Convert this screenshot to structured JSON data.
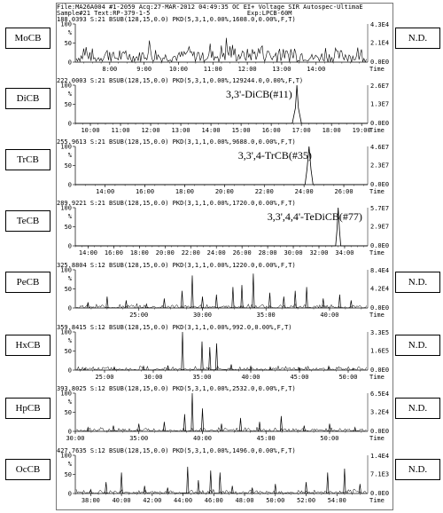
{
  "header": {
    "line1": "File:MA26A004 #1-2059 Acq:27-MAR-2012 04:49:35 OC EI+ Voltage SIR Autospec-UltimaE",
    "line2": "Sample#21 Text:RP-379-1-5                          Exp:LPCB-60M"
  },
  "chart_data": [
    {
      "type": "line",
      "label": "MoCB",
      "right_label": "N.D.",
      "info": "188.0393 S:21 BSUB(128,15,0.0) PKD(5,3,1,0.00%,1608.0,0.00%,F,T)",
      "xlim": [
        7,
        15.5
      ],
      "xticks": [
        "8:00",
        "9:00",
        "10:00",
        "11:00",
        "12:00",
        "13:00",
        "14:00"
      ],
      "xtick_values": [
        8,
        9,
        10,
        11,
        12,
        13,
        14
      ],
      "yticks": [
        "0",
        "50",
        "100"
      ],
      "right_ticks": [
        "4.3E4",
        "2.1E4",
        "0.0E0"
      ],
      "x_title": "Time",
      "noise": "dense",
      "x": [
        7.0,
        7.3,
        7.6,
        7.9,
        8.2,
        8.5,
        8.8,
        9.1,
        9.4,
        9.7,
        10.0,
        10.3,
        10.6,
        10.9,
        11.2,
        11.5,
        11.8,
        12.1,
        12.4,
        12.7,
        13.0,
        13.3,
        13.6,
        13.9,
        14.2,
        14.5,
        14.8,
        15.1,
        15.4
      ],
      "y": [
        30,
        60,
        25,
        70,
        35,
        55,
        40,
        75,
        30,
        50,
        45,
        70,
        35,
        60,
        40,
        95,
        50,
        65,
        85,
        40,
        60,
        55,
        70,
        35,
        50,
        45,
        60,
        40,
        55
      ]
    },
    {
      "type": "line",
      "label": "DiCB",
      "info": "222.0003 S:21 BSUB(128,15,0.0) PKD(5,3,1,0.00%,129244.0,0.00%,F,T)",
      "annotation": "3,3'-DiCB(#11)",
      "xlim": [
        9.5,
        19.2
      ],
      "xticks": [
        "10:00",
        "11:00",
        "12:00",
        "13:00",
        "14:00",
        "15:00",
        "16:00",
        "17:00",
        "18:00",
        "19:00"
      ],
      "xtick_values": [
        10,
        11,
        12,
        13,
        14,
        15,
        16,
        17,
        18,
        19
      ],
      "yticks": [
        "0",
        "50",
        "100"
      ],
      "right_ticks": [
        "2.6E7",
        "1.3E7",
        "0.0E0"
      ],
      "x_title": "Time",
      "noise": "none",
      "x": [
        9.5,
        16.7,
        16.8,
        16.85,
        16.9,
        17.0,
        19.2
      ],
      "y": [
        0,
        0,
        40,
        100,
        40,
        0,
        0
      ]
    },
    {
      "type": "line",
      "label": "TrCB",
      "info": "255.9613 S:21 BSUB(128,15,0.0) PKD(3,1,1,0.00%,9688.0,0.00%,F,T)",
      "annotation": "3,3',4-TrCB(#35)",
      "xlim": [
        12.5,
        27.2
      ],
      "xticks": [
        "14:00",
        "16:00",
        "18:00",
        "20:00",
        "22:00",
        "24:00",
        "26:00"
      ],
      "xtick_values": [
        14,
        16,
        18,
        20,
        22,
        24,
        26
      ],
      "yticks": [
        "0",
        "50",
        "100"
      ],
      "right_ticks": [
        "4.6E7",
        "2.3E7",
        "0.0E0"
      ],
      "x_title": "Time",
      "noise": "none",
      "x": [
        12.5,
        24.05,
        24.15,
        24.25,
        24.35,
        24.45,
        27.2
      ],
      "y": [
        0,
        0,
        40,
        100,
        40,
        0,
        0
      ]
    },
    {
      "type": "line",
      "label": "TeCB",
      "info": "289.9221 S:21 BSUB(128,15,0.0) PKD(3,1,1,0.00%,1720.0,0.00%,F,T)",
      "annotation": "3,3',4,4'-TeDiCB(#77)",
      "xlim": [
        13,
        35.8
      ],
      "xticks": [
        "14:00",
        "16:00",
        "18:00",
        "20:00",
        "22:00",
        "24:00",
        "26:00",
        "28:00",
        "30:00",
        "32:00",
        "34:00"
      ],
      "xtick_values": [
        14,
        16,
        18,
        20,
        22,
        24,
        26,
        28,
        30,
        32,
        34
      ],
      "yticks": [
        "0",
        "50",
        "100"
      ],
      "right_ticks": [
        "5.7E7",
        "2.9E7",
        "0.0E0"
      ],
      "x_title": "Time",
      "noise": "none",
      "x": [
        13,
        33.3,
        33.4,
        33.5,
        33.6,
        33.7,
        35.8
      ],
      "y": [
        0,
        0,
        40,
        100,
        40,
        0,
        0
      ]
    },
    {
      "type": "line",
      "label": "PeCB",
      "right_label": "N.D.",
      "info": "325.8804 S:12 BSUB(128,15,0.0) PKD(3,1,1,0.00%,1220.0,0.00%,F,T)",
      "xlim": [
        20,
        43
      ],
      "xticks": [
        "25:00",
        "30:00",
        "35:00",
        "40:00"
      ],
      "xtick_values": [
        25,
        30,
        35,
        40
      ],
      "yticks": [
        "0",
        "50",
        "100"
      ],
      "right_ticks": [
        "8.4E4",
        "4.2E4",
        "0.0E0"
      ],
      "x_title": "Time",
      "noise": "sparse",
      "x": [
        21.0,
        22.5,
        24.0,
        25.6,
        27.0,
        28.4,
        29.2,
        30.0,
        31.1,
        32.4,
        33.1,
        34.0,
        35.3,
        36.4,
        37.3,
        38.2,
        39.5,
        40.8,
        41.7
      ],
      "y": [
        15,
        30,
        20,
        10,
        25,
        45,
        85,
        30,
        35,
        55,
        60,
        90,
        40,
        30,
        45,
        55,
        25,
        35,
        20
      ]
    },
    {
      "type": "line",
      "label": "HxCB",
      "right_label": "N.D.",
      "info": "359.8415 S:12 BSUB(128,15,0.0) PKD(3,1,1,0.00%,992.0,0.00%,F,T)",
      "xlim": [
        22,
        52
      ],
      "xticks": [
        "25:00",
        "30:00",
        "35:00",
        "40:00",
        "45:00",
        "50:00"
      ],
      "xtick_values": [
        25,
        30,
        35,
        40,
        45,
        50
      ],
      "yticks": [
        "0",
        "50",
        "100"
      ],
      "right_ticks": [
        "3.3E5",
        "1.6E5",
        "0.0E0"
      ],
      "x_title": "Time",
      "noise": "sparse",
      "x": [
        23.0,
        26.0,
        29.0,
        31.5,
        33.0,
        35.0,
        35.8,
        36.5,
        38.0,
        40.0,
        42.0,
        45.0,
        48.0,
        50.5
      ],
      "y": [
        5,
        8,
        10,
        12,
        100,
        75,
        60,
        70,
        15,
        10,
        8,
        6,
        10,
        5
      ]
    },
    {
      "type": "line",
      "label": "HpCB",
      "right_label": "N.D.",
      "info": "393.8025 S:12 BSUB(128,15,0.0) PKD(5,3,1,0.00%,2532.0,0.00%,F,T)",
      "xlim": [
        30,
        53
      ],
      "xticks": [
        "30:00",
        "35:00",
        "40:00",
        "45:00",
        "50:00"
      ],
      "xtick_values": [
        30,
        35,
        40,
        45,
        50
      ],
      "yticks": [
        "0",
        "50",
        "100"
      ],
      "right_ticks": [
        "6.5E4",
        "3.2E4",
        "0.0E0"
      ],
      "x_title": "Time",
      "noise": "sparse",
      "x": [
        31.0,
        33.0,
        35.0,
        37.0,
        38.6,
        39.2,
        40.0,
        41.5,
        43.0,
        44.5,
        46.2,
        48.0,
        50.0,
        52.0
      ],
      "y": [
        10,
        15,
        20,
        25,
        45,
        100,
        60,
        20,
        35,
        25,
        40,
        15,
        20,
        10
      ]
    },
    {
      "type": "line",
      "label": "OcCB",
      "right_label": "N.D.",
      "info": "427.7635 S:12 BSUB(128,15,0.0) PKD(5,3,1,0.00%,1496.0,0.00%,F,T)",
      "xlim": [
        37,
        56
      ],
      "xticks": [
        "38:00",
        "40:00",
        "42:00",
        "44:00",
        "46:00",
        "48:00",
        "50:00",
        "52:00",
        "54:00"
      ],
      "xtick_values": [
        38,
        40,
        42,
        44,
        46,
        48,
        50,
        52,
        54
      ],
      "yticks": [
        "0",
        "50",
        "100"
      ],
      "right_ticks": [
        "1.4E4",
        "7.1E3",
        "0.0E0"
      ],
      "x_title": "Time",
      "noise": "sparse",
      "x": [
        38.0,
        39.0,
        40.0,
        41.5,
        43.0,
        44.3,
        45.0,
        45.8,
        46.4,
        47.2,
        48.5,
        50.0,
        52.0,
        53.4,
        54.5,
        55.5
      ],
      "y": [
        10,
        30,
        55,
        20,
        15,
        70,
        35,
        60,
        55,
        20,
        15,
        25,
        30,
        55,
        65,
        25
      ]
    }
  ]
}
